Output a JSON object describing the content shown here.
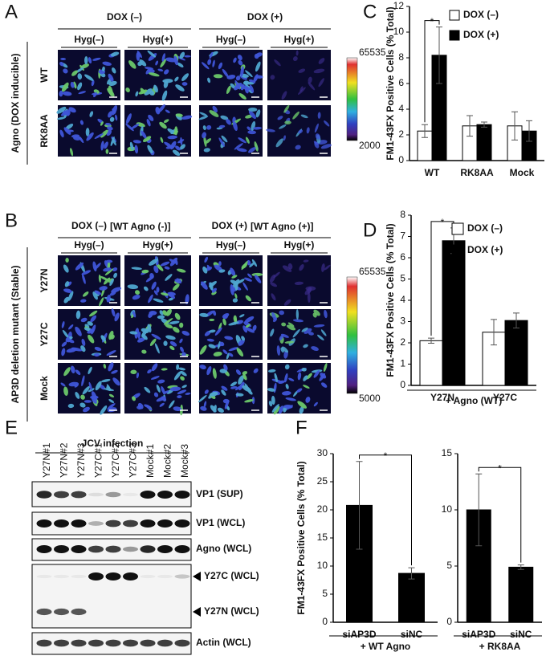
{
  "figure": {
    "A": {
      "label": "A",
      "headers": [
        "DOX (–)",
        "DOX (+)"
      ],
      "columns": [
        "Hyg(–)",
        "Hyg(+)",
        "Hyg(–)",
        "Hyg(+)"
      ],
      "side_label": "Agno (DOX inducible)",
      "rows": [
        "WT",
        "RK8AA"
      ],
      "colorbar": [
        "65535",
        "2000"
      ]
    },
    "B": {
      "label": "B",
      "headers": [
        "DOX (–)",
        "DOX (+)"
      ],
      "header_notes": [
        "[WT Agno (-)]",
        "[WT Agno (+)]"
      ],
      "columns": [
        "Hyg(–)",
        "Hyg(+)",
        "Hyg(–)",
        "Hyg(+)"
      ],
      "side_label": "AP3D deletion mutant (Stable)",
      "rows": [
        "Y27N",
        "Y27C",
        "Mock"
      ],
      "colorbar": [
        "65535",
        "5000"
      ]
    },
    "C": {
      "label": "C"
    },
    "D": {
      "label": "D"
    },
    "E": {
      "label": "E",
      "header": "JCV infection",
      "lanes": [
        "Y27N#1",
        "Y27N#2",
        "Y27N#3",
        "Y27C#1",
        "Y27C#2",
        "Y27C#3",
        "Mock#1",
        "Mock#2",
        "Mock#3"
      ],
      "blots": [
        "VP1 (SUP)",
        "VP1 (WCL)",
        "Agno (WCL)",
        "Y27C (WCL)",
        "Y27N (WCL)",
        "Actin (WCL)"
      ]
    },
    "F": {
      "label": "F"
    }
  },
  "chart_data": [
    {
      "type": "bar",
      "ylabel": "FM1-43FX Positive Cells (% Total)",
      "categories": [
        "WT",
        "RK8AA",
        "Mock"
      ],
      "series": [
        {
          "name": "DOX (–)",
          "color": "#ffffff",
          "values": [
            2.3,
            2.7,
            2.7
          ],
          "errors": [
            0.5,
            0.8,
            1.1
          ]
        },
        {
          "name": "DOX (+)",
          "color": "#000000",
          "values": [
            8.2,
            2.8,
            2.3
          ],
          "errors": [
            2.2,
            0.2,
            0.8
          ]
        }
      ],
      "ylim": [
        0,
        12
      ],
      "yticks": [
        0,
        2,
        4,
        6,
        8,
        10,
        12
      ],
      "annotations": [
        "*"
      ]
    },
    {
      "type": "bar",
      "ylabel": "FM1-43FX Positive Cells (% Total)",
      "xlabel": "+ Agno (WT)",
      "categories": [
        "Y27N",
        "Y27C"
      ],
      "series": [
        {
          "name": "DOX (–)",
          "color": "#ffffff",
          "values": [
            2.1,
            2.5
          ],
          "errors": [
            0.12,
            0.6
          ]
        },
        {
          "name": "DOX (+)",
          "color": "#000000",
          "values": [
            6.8,
            3.05
          ],
          "errors": [
            0.6,
            0.35
          ]
        }
      ],
      "ylim": [
        0,
        8
      ],
      "yticks": [
        0,
        1,
        2,
        3,
        4,
        5,
        6,
        7,
        8
      ],
      "annotations": [
        "*"
      ]
    },
    {
      "type": "bar",
      "ylabel": "FM1-43FX Positive Cells (% Total)",
      "xlabel": "+ WT Agno",
      "categories": [
        "siAP3D",
        "siNC"
      ],
      "color": "#000000",
      "values": [
        20.8,
        8.7
      ],
      "errors": [
        7.8,
        1.0
      ],
      "ylim": [
        0,
        30
      ],
      "yticks": [
        0,
        5,
        10,
        15,
        20,
        25,
        30
      ],
      "annotations": [
        "*"
      ]
    },
    {
      "type": "bar",
      "xlabel": "+ RK8AA",
      "categories": [
        "siAP3D",
        "siNC"
      ],
      "color": "#000000",
      "values": [
        10.0,
        4.9
      ],
      "errors": [
        3.2,
        0.2
      ],
      "ylim": [
        0,
        15
      ],
      "yticks": [
        0,
        5,
        10,
        15
      ],
      "annotations": [
        "*"
      ]
    }
  ]
}
